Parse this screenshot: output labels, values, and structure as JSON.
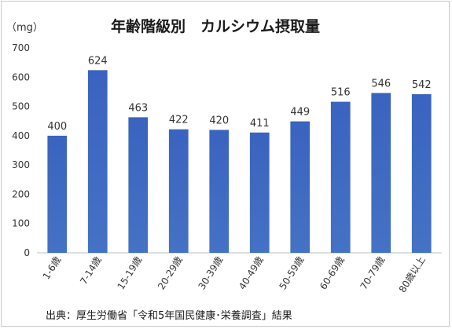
{
  "chart_data": {
    "type": "bar",
    "title": "年齢階級別　カルシウム摂取量",
    "ylabel": "（mg）",
    "categories": [
      "1-6歳",
      "7-14歳",
      "15-19歳",
      "20-29歳",
      "30-39歳",
      "40-49歳",
      "50-59歳",
      "60-69歳",
      "70-79歳",
      "80歳以上"
    ],
    "values": [
      400,
      624,
      463,
      422,
      420,
      411,
      449,
      516,
      546,
      542
    ],
    "ylim": [
      0,
      700
    ],
    "yticks": [
      0,
      100,
      200,
      300,
      400,
      500,
      600,
      700
    ],
    "grid": false,
    "legend": "none",
    "bar_color": "#4472c4",
    "source": "出典：厚生労働省「令和5年国民健康･栄養調査」結果"
  }
}
